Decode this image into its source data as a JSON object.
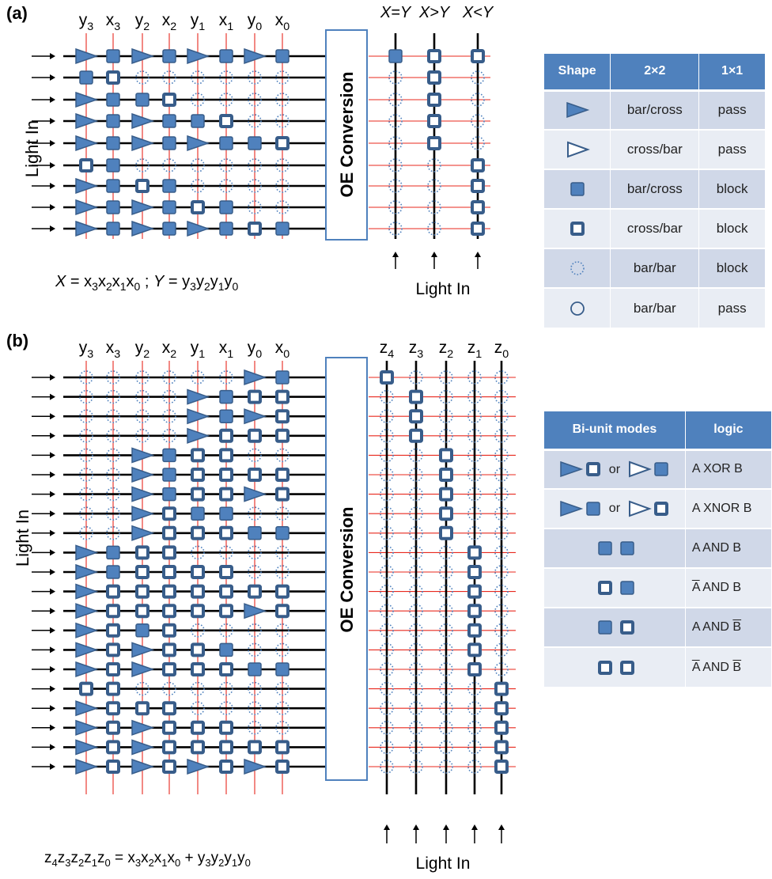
{
  "colors": {
    "shape_fill": "#4f81bd",
    "shape_stroke": "#385d8a",
    "guide_line": "#e8281e",
    "wire": "#000000",
    "header": "#4f81bd"
  },
  "panel_a": {
    "label": "(a)",
    "columns": [
      "y",
      "x",
      "y",
      "x",
      "y",
      "x",
      "y",
      "x"
    ],
    "column_subs": [
      "3",
      "3",
      "2",
      "2",
      "1",
      "1",
      "0",
      "0"
    ],
    "cells": [
      [
        "T",
        "S",
        "T",
        "S",
        "T",
        "S",
        "T",
        "S"
      ],
      [
        "S",
        "H",
        "",
        "",
        "",
        "",
        "",
        ""
      ],
      [
        "T",
        "S",
        "S",
        "H",
        "",
        "",
        "",
        ""
      ],
      [
        "T",
        "S",
        "T",
        "S",
        "S",
        "H",
        "",
        ""
      ],
      [
        "T",
        "S",
        "T",
        "S",
        "T",
        "S",
        "S",
        "H"
      ],
      [
        "H",
        "S",
        "",
        "",
        "",
        "",
        "",
        ""
      ],
      [
        "T",
        "S",
        "H",
        "S",
        "",
        "",
        "",
        ""
      ],
      [
        "T",
        "S",
        "T",
        "S",
        "H",
        "S",
        "",
        ""
      ],
      [
        "T",
        "S",
        "T",
        "S",
        "T",
        "S",
        "H",
        "S"
      ]
    ],
    "oe_label": "OE Conversion",
    "outputs": [
      "X=Y",
      "X>Y",
      "X<Y"
    ],
    "output_cells": [
      [
        "S",
        "H",
        "H"
      ],
      [
        "D",
        "H",
        "D"
      ],
      [
        "D",
        "H",
        "D"
      ],
      [
        "D",
        "H",
        "D"
      ],
      [
        "D",
        "H",
        "D"
      ],
      [
        "D",
        "D",
        "H"
      ],
      [
        "D",
        "D",
        "H"
      ],
      [
        "D",
        "D",
        "H"
      ],
      [
        "D",
        "D",
        "H"
      ]
    ],
    "side_label": "Light In",
    "bottom_label": "Light In",
    "formula_x": "X",
    "formula_eq1": " = x",
    "formula_y": "Y",
    "formula_eq2": " = y"
  },
  "panel_b": {
    "label": "(b)",
    "columns": [
      "y",
      "x",
      "y",
      "x",
      "y",
      "x",
      "y",
      "x"
    ],
    "column_subs": [
      "3",
      "3",
      "2",
      "2",
      "1",
      "1",
      "0",
      "0"
    ],
    "cells": [
      [
        "",
        "",
        "",
        "",
        "",
        "",
        "T",
        "S"
      ],
      [
        "",
        "",
        "",
        "",
        "T",
        "S",
        "H",
        "H"
      ],
      [
        "",
        "",
        "",
        "",
        "T",
        "S",
        "T",
        "H"
      ],
      [
        "",
        "",
        "",
        "",
        "T",
        "H",
        "H",
        "H"
      ],
      [
        "",
        "",
        "T",
        "S",
        "H",
        "H",
        "",
        ""
      ],
      [
        "",
        "",
        "T",
        "S",
        "H",
        "H",
        "H",
        "H"
      ],
      [
        "",
        "",
        "T",
        "S",
        "H",
        "H",
        "T",
        "H"
      ],
      [
        "",
        "",
        "T",
        "H",
        "S",
        "S",
        "",
        ""
      ],
      [
        "",
        "",
        "T",
        "H",
        "H",
        "H",
        "S",
        "S"
      ],
      [
        "T",
        "S",
        "H",
        "H",
        "",
        "",
        "",
        ""
      ],
      [
        "T",
        "S",
        "H",
        "H",
        "H",
        "H",
        "",
        ""
      ],
      [
        "T",
        "H",
        "H",
        "H",
        "H",
        "H",
        "H",
        "H"
      ],
      [
        "T",
        "H",
        "H",
        "H",
        "H",
        "H",
        "T",
        "H"
      ],
      [
        "T",
        "H",
        "S",
        "H",
        "",
        "",
        "",
        ""
      ],
      [
        "T",
        "H",
        "T",
        "H",
        "H",
        "S",
        "",
        ""
      ],
      [
        "T",
        "H",
        "T",
        "H",
        "H",
        "H",
        "S",
        "S"
      ],
      [
        "H",
        "H",
        "",
        "",
        "",
        "",
        "",
        ""
      ],
      [
        "T",
        "H",
        "H",
        "H",
        "",
        "",
        "",
        ""
      ],
      [
        "T",
        "H",
        "T",
        "H",
        "H",
        "H",
        "",
        ""
      ],
      [
        "T",
        "H",
        "T",
        "H",
        "H",
        "H",
        "H",
        "H"
      ],
      [
        "T",
        "H",
        "T",
        "H",
        "T",
        "H",
        "T",
        "H"
      ]
    ],
    "oe_label": "OE Conversion",
    "outputs": [
      "z",
      "z",
      "z",
      "z",
      "z"
    ],
    "output_subs": [
      "4",
      "3",
      "2",
      "1",
      "0"
    ],
    "output_hollow": [
      [
        0,
        4
      ],
      [
        1,
        3
      ],
      [
        2,
        3
      ],
      [
        3,
        3
      ],
      [
        4,
        2
      ],
      [
        5,
        2
      ],
      [
        6,
        2
      ],
      [
        7,
        2
      ],
      [
        8,
        2
      ],
      [
        9,
        1
      ],
      [
        10,
        1
      ],
      [
        11,
        1
      ],
      [
        12,
        1
      ],
      [
        13,
        1
      ],
      [
        14,
        1
      ],
      [
        15,
        1
      ],
      [
        16,
        0
      ],
      [
        17,
        0
      ],
      [
        18,
        0
      ],
      [
        19,
        0
      ],
      [
        20,
        0
      ]
    ],
    "side_label": "Light In",
    "bottom_label": "Light In",
    "formula": "z4z3z2z1z0 = x3x2x1x0 + y3y2y1y0"
  },
  "shape_table": {
    "headers": [
      "Shape",
      "2×2",
      "1×1"
    ],
    "rows": [
      {
        "icon": "filled-triangle-icon",
        "mode": "bar/cross",
        "pass": "pass"
      },
      {
        "icon": "hollow-triangle-icon",
        "mode": "cross/bar",
        "pass": "pass"
      },
      {
        "icon": "filled-square-icon",
        "mode": "bar/cross",
        "pass": "block"
      },
      {
        "icon": "hollow-square-icon",
        "mode": "cross/bar",
        "pass": "block"
      },
      {
        "icon": "dotted-circle-icon",
        "mode": "bar/bar",
        "pass": "block"
      },
      {
        "icon": "open-circle-icon",
        "mode": "bar/bar",
        "pass": "pass"
      }
    ]
  },
  "logic_table": {
    "headers": [
      "Bi-unit modes",
      "logic"
    ],
    "or_text": "or",
    "rows": [
      {
        "logic": "A XOR B"
      },
      {
        "logic": "A XNOR B"
      },
      {
        "logic": "A AND B"
      },
      {
        "logic_a": "A",
        "logic_mid": " AND B"
      },
      {
        "logic_pre": "A AND ",
        "logic_b": "B"
      },
      {
        "logic_a": "A",
        "logic_mid": " AND ",
        "logic_b": "B"
      }
    ]
  }
}
